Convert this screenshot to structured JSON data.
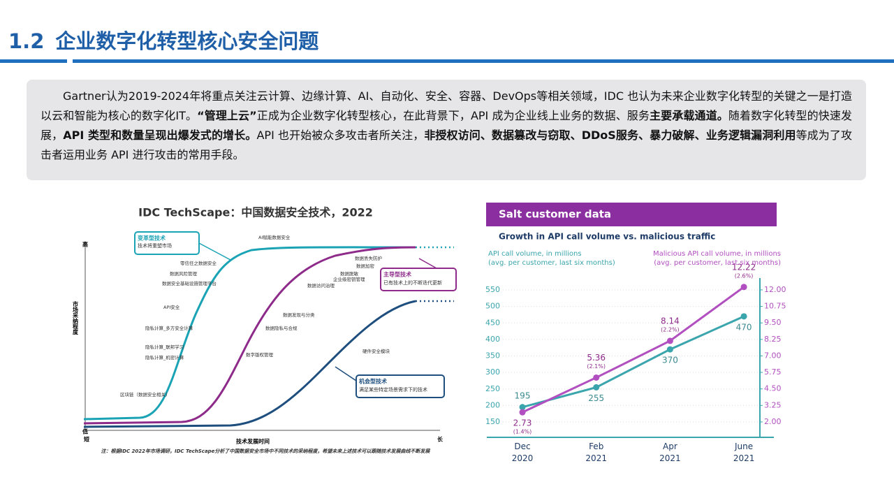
{
  "header": {
    "number": "1.2",
    "title": "企业数字化转型核心安全问题"
  },
  "intro": [
    {
      "text": "Gartner认为2019-2024年将重点关注云计算、边缘计算、AI、自动化、安全、容器、DevOps等相关领域，IDC 也认为未来企业数字化转型的关键之一是打造以云和智能为核心的数字化IT。",
      "bold": false
    },
    {
      "text": "“管理上云”",
      "bold": true
    },
    {
      "text": "正成为企业数字化转型核心，在此背景下，API 成为企业线上业务的数据、服务",
      "bold": false
    },
    {
      "text": "主要承载通道。",
      "bold": true
    },
    {
      "text": "随着数字化转型的快速发展，",
      "bold": false
    },
    {
      "text": "API 类型和数量呈现出爆发式的增长。",
      "bold": true
    },
    {
      "text": "API 也开始被众多攻击者所关注，",
      "bold": false
    },
    {
      "text": "非授权访问、数据篡改与窃取、DDoS服务、暴力破解、业务逻辑漏洞利用",
      "bold": true
    },
    {
      "text": "等成为了攻击者运用业务 API 进行攻击的常用手段。",
      "bold": false
    }
  ],
  "idc_chart": {
    "title": "IDC TechScape：中国数据安全技术，2022",
    "y_high": "高",
    "y_low": "低",
    "ylabel": "市场采纳程度",
    "x_short": "短",
    "x_long": "长",
    "xlabel": "技术发展时间",
    "note": "注：根据IDC 2022年市场调研，IDC TechScape分析了中国数据安全市场中不同技术的采纳程度，希望未来上述技术可以跟随技术发展曲线不断发展",
    "groups": [
      {
        "name": "变革型技术",
        "desc": "技术将重塑市场",
        "labels": [
          "AI赋能数据安全",
          "零信任之数据安全",
          "数据风险管理",
          "数据安全基础设施管理平台",
          "API安全",
          "隐私计算_多方安全计算",
          "隐私计算_联邦学习",
          "隐私计算_机密计算",
          "区块链（数据安全相关）"
        ]
      },
      {
        "name": "主导型技术",
        "desc": "已有技术上的不断迭代更新",
        "labels": [
          "数据丢失防护",
          "数据加密",
          "数据脱敏",
          "企业级密钥管理",
          "数据访问治理",
          "数据发现与分类",
          "数据隐私与合规",
          "数字版权管理"
        ]
      },
      {
        "name": "机会型技术",
        "desc": "满足某些特定场景需求下的技术",
        "labels": [
          "硬件安全模块"
        ]
      }
    ]
  },
  "chart_data": {
    "type": "line",
    "title": "Salt customer data",
    "subtitle": "Growth in API call volume vs. malicious traffic",
    "categories": [
      "Dec 2020",
      "Feb 2021",
      "Apr 2021",
      "June 2021"
    ],
    "ylabel": [
      "API call volume, in millions",
      "(avg. per customer, last six months)"
    ],
    "y2label": [
      "Malicious API call volume, in millions",
      "(avg. per customer, last six months)"
    ],
    "ylim": [
      105,
      585
    ],
    "yticks": [
      150,
      200,
      250,
      300,
      350,
      400,
      450,
      500,
      550
    ],
    "y2lim": [
      0.87,
      12.87
    ],
    "y2ticks": [
      {
        "value": 2,
        "label": "2.00"
      },
      {
        "value": 3.25,
        "label": "3.25"
      },
      {
        "value": 4.5,
        "label": "4.50"
      },
      {
        "value": 5.75,
        "label": "5.75"
      },
      {
        "value": 7,
        "label": "7.00"
      },
      {
        "value": 8.25,
        "label": "8.25"
      },
      {
        "value": 9.5,
        "label": "9.50"
      },
      {
        "value": 10.75,
        "label": "10.75"
      },
      {
        "value": 12,
        "label": "12.00"
      }
    ],
    "series": [
      {
        "name": "API call volume",
        "color": "#3aa5ad",
        "values": [
          195,
          255,
          370,
          470
        ]
      },
      {
        "name": "Malicious API call volume",
        "color": "#b24fc0",
        "axis": "y2",
        "values": [
          2.73,
          5.36,
          8.14,
          12.22
        ],
        "annotations": [
          "(1.4%)",
          "(2.1%)",
          "(2.2%)",
          "(2.6%)"
        ]
      }
    ]
  }
}
